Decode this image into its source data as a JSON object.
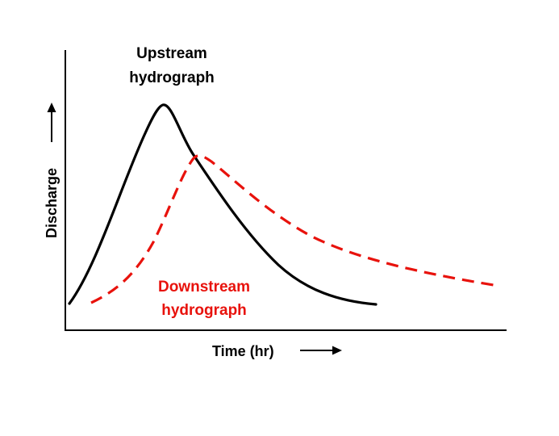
{
  "labels": {
    "upstream_line1": "Upstream",
    "upstream_line2": "hydrograph",
    "downstream_line1": "Downstream",
    "downstream_line2": "hydrograph",
    "x_axis": "Time (hr)",
    "y_axis": "Discharge"
  },
  "colors": {
    "upstream": "#000000",
    "downstream": "#e8120c",
    "axis": "#000000"
  },
  "curves": {
    "upstream_style": "solid",
    "downstream_style": "dashed"
  },
  "arrows": {
    "x_axis_arrow": "right-arrow-icon",
    "y_axis_arrow": "up-arrow-icon"
  }
}
